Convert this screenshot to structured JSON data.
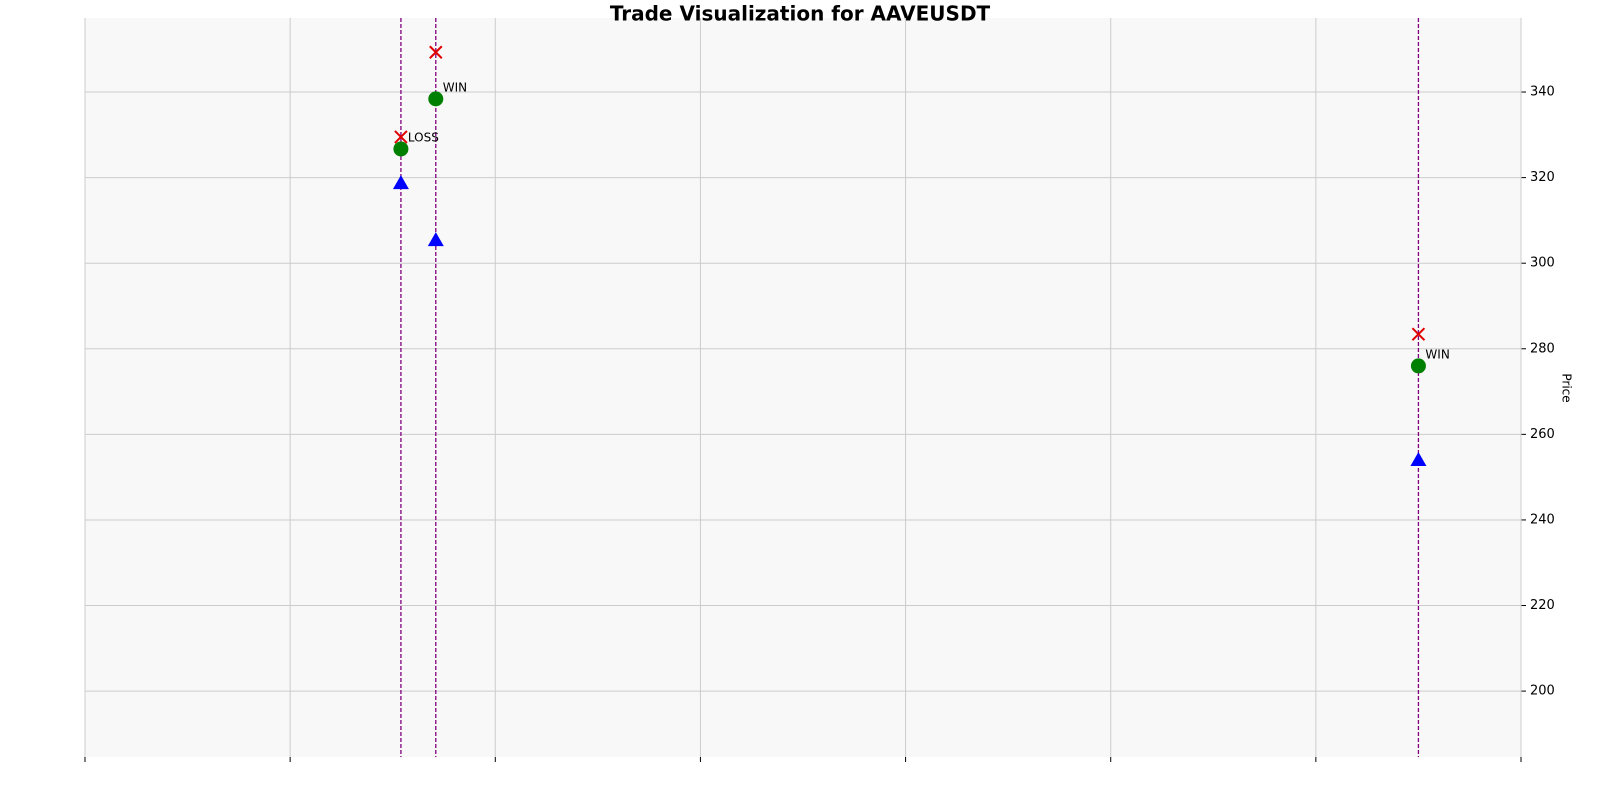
{
  "chart_data": {
    "type": "scatter",
    "title": "Trade Visualization for AAVEUSDT",
    "y_label": "Price",
    "x": [
      1.54,
      1.71,
      6.5
    ],
    "xlim": [
      0,
      7
    ],
    "xticks": [
      0,
      1,
      2,
      3,
      4,
      5,
      6,
      7
    ],
    "ylim": [
      184.6,
      357.3
    ],
    "yticks": [
      200,
      220,
      240,
      260,
      280,
      300,
      320,
      340
    ],
    "grid": true,
    "vline_color": "#800080",
    "series": [
      {
        "marker": "triangle",
        "color": "#0000ff",
        "values": [
          318.7,
          305.4,
          254
        ]
      },
      {
        "marker": "circle",
        "color": "#008000",
        "values": [
          326.7,
          338.4,
          276
        ]
      },
      {
        "marker": "cross",
        "color": "#e00000",
        "values": [
          329.5,
          349.3,
          283.4
        ]
      }
    ],
    "annotations": [
      "LOSS",
      "WIN",
      "WIN"
    ]
  }
}
